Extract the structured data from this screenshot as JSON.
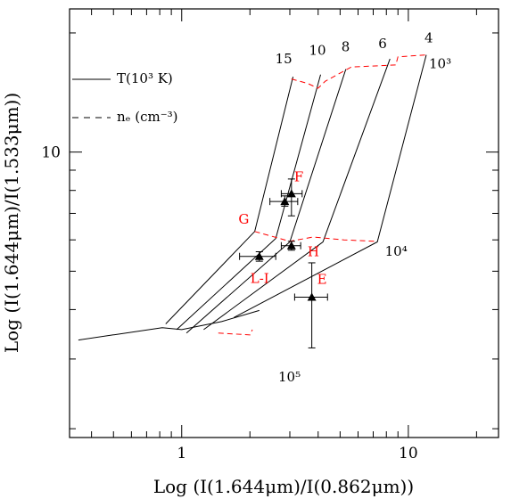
{
  "chart_data": {
    "type": "scatter",
    "xlabel": "Log  (I(1.644μm)/I(0.862μm))",
    "ylabel": "Log  (I(1.644μm)/I(1.533μm))",
    "x_log": true,
    "y_log": true,
    "xlim": [
      0.32,
      25
    ],
    "ylim": [
      1.9,
      23
    ],
    "x_ticks": [
      {
        "v": 1,
        "label": "1"
      },
      {
        "v": 10,
        "label": "10"
      }
    ],
    "y_ticks": [
      {
        "v": 10,
        "label": "10"
      }
    ],
    "legend": [
      {
        "style": "solid",
        "text": "T(10³ K)"
      },
      {
        "style": "dashed",
        "text": "nₑ (cm⁻³)"
      }
    ],
    "temperature_grid": [
      {
        "label": "15",
        "points": [
          [
            0.85,
            3.68
          ],
          [
            2.1,
            6.3
          ],
          [
            3.1,
            15.5
          ]
        ]
      },
      {
        "label": "10",
        "points": [
          [
            0.95,
            3.56
          ],
          [
            2.6,
            6.05
          ],
          [
            4.1,
            15.7
          ]
        ]
      },
      {
        "label": "8",
        "points": [
          [
            1.05,
            3.49
          ],
          [
            3.0,
            5.93
          ],
          [
            5.3,
            16.2
          ]
        ]
      },
      {
        "label": "6",
        "points": [
          [
            1.25,
            3.56
          ],
          [
            4.2,
            5.93
          ],
          [
            8.3,
            17.2
          ]
        ]
      },
      {
        "label": "4",
        "points": [
          [
            1.7,
            3.82
          ],
          [
            7.3,
            5.93
          ],
          [
            12.0,
            17.6
          ]
        ]
      }
    ],
    "low_density_locus": [
      [
        0.35,
        3.35
      ],
      [
        0.82,
        3.6
      ],
      [
        1.0,
        3.56
      ],
      [
        1.5,
        3.73
      ],
      [
        2.2,
        3.98
      ]
    ],
    "density_curves": [
      {
        "label": "10³",
        "points": [
          [
            3.05,
            15.3
          ],
          [
            3.6,
            14.9
          ],
          [
            4.0,
            14.5
          ],
          [
            4.3,
            15.1
          ],
          [
            5.6,
            16.4
          ],
          [
            8.8,
            16.6
          ],
          [
            9.0,
            17.4
          ],
          [
            12.0,
            17.6
          ]
        ]
      },
      {
        "label": "10⁴",
        "points": [
          [
            2.1,
            6.3
          ],
          [
            3.0,
            5.95
          ],
          [
            3.8,
            6.1
          ],
          [
            5.2,
            6.0
          ],
          [
            7.2,
            5.95
          ]
        ]
      },
      {
        "label": "10⁵",
        "points": []
      }
    ],
    "dashed_segments": [
      [
        [
          1.45,
          3.49
        ],
        [
          2.0,
          3.45
        ],
        [
          2.05,
          3.56
        ]
      ]
    ],
    "observations": [
      {
        "name": "F",
        "x": 3.05,
        "y": 7.85,
        "xerr": [
          2.75,
          3.4
        ],
        "yerr": [
          6.9,
          8.55
        ]
      },
      {
        "name": "G",
        "x": 2.85,
        "y": 7.5,
        "xerr": [
          2.45,
          3.25
        ],
        "yerr": [
          7.3,
          7.75
        ]
      },
      {
        "name": "H",
        "x": 3.05,
        "y": 5.8,
        "xerr": [
          2.75,
          3.35
        ],
        "yerr": [
          5.65,
          5.95
        ]
      },
      {
        "name": "L-I",
        "x": 2.2,
        "y": 5.45,
        "xerr": [
          1.8,
          2.6
        ],
        "yerr": [
          5.3,
          5.6
        ]
      },
      {
        "name": "E",
        "x": 3.75,
        "y": 4.3,
        "xerr": [
          3.15,
          4.4
        ],
        "yerr": [
          3.2,
          5.25
        ]
      }
    ],
    "grid": false,
    "legend_position": "top-left"
  }
}
